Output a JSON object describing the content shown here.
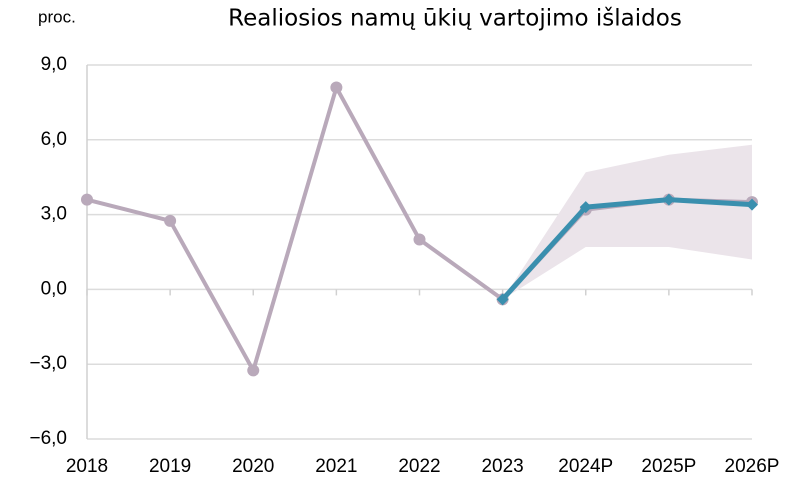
{
  "chart_data": {
    "type": "line",
    "title": "Realiosios namų ūkių vartojimo išlaidos",
    "y_label": "proc.",
    "categories": [
      "2018",
      "2019",
      "2020",
      "2021",
      "2022",
      "2023",
      "2024P",
      "2025P",
      "2026P"
    ],
    "series": [
      {
        "color": "#b9a9ba",
        "values": [
          3.6,
          2.75,
          -3.25,
          8.1,
          2.0,
          -0.4,
          3.2,
          3.6,
          3.5
        ]
      },
      {
        "color": "#3a8fae",
        "values": [
          null,
          null,
          null,
          null,
          null,
          -0.4,
          3.3,
          3.6,
          3.4
        ]
      }
    ],
    "band": {
      "color": "#ebe4ea",
      "lower": [
        null,
        null,
        null,
        null,
        null,
        -0.4,
        1.7,
        1.7,
        1.2
      ],
      "upper": [
        null,
        null,
        null,
        null,
        null,
        -0.4,
        4.7,
        5.4,
        5.8
      ]
    },
    "ylim": [
      -6,
      9
    ],
    "yticks": [
      {
        "value": -6,
        "label": "−6,0"
      },
      {
        "value": -3,
        "label": "−3,0"
      },
      {
        "value": 0,
        "label": "0,0"
      },
      {
        "value": 3,
        "label": "3,0"
      },
      {
        "value": 6,
        "label": "6,0"
      },
      {
        "value": 9,
        "label": "9,0"
      }
    ],
    "grid": true
  }
}
